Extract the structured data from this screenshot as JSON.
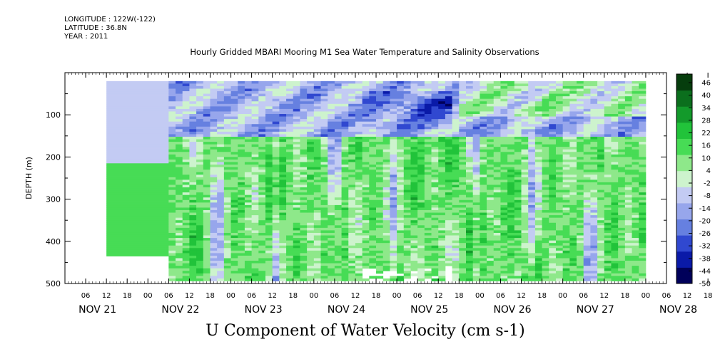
{
  "header": {
    "longitude": "LONGITUDE : 122W(-122)",
    "latitude": "LATITUDE : 36.8N",
    "year": "YEAR : 2011"
  },
  "chart_data": {
    "type": "heatmap",
    "title": "Hourly Gridded MBARI Mooring M1 Sea Water Temperature and Salinity Observations",
    "variable_label": "U Component of Water Velocity (cm s-1)",
    "ylabel": "DEPTH (m)",
    "ylim": [
      500,
      0
    ],
    "y_ticks": [
      100,
      200,
      300,
      400,
      500
    ],
    "y_tick_labels": [
      "100",
      "200",
      "300",
      "400",
      "500"
    ],
    "x_hour_tick_labels": [
      "06",
      "12",
      "18",
      "00",
      "06",
      "12",
      "18",
      "00",
      "06",
      "12",
      "18",
      "00",
      "06",
      "12",
      "18",
      "00",
      "06",
      "12",
      "18",
      "00",
      "06",
      "12",
      "18",
      "00",
      "06",
      "12",
      "18",
      "00",
      "06",
      "12",
      "18",
      "00"
    ],
    "x_date_labels": [
      "NOV 21",
      "NOV 22",
      "NOV 23",
      "NOV 24",
      "NOV 25",
      "NOV 26",
      "NOV 27",
      "NOV 28"
    ],
    "colorbar": {
      "levels": [
        "46",
        "40",
        "34",
        "28",
        "22",
        "16",
        "10",
        "4",
        "-2",
        "-8",
        "-14",
        "-20",
        "-26",
        "-32",
        "-38",
        "-44",
        "-50"
      ],
      "range": [
        -50,
        52
      ],
      "colors_low_to_high": [
        "#00005a",
        "#0a1aa8",
        "#3048d0",
        "#6680e0",
        "#97a6ec",
        "#c3cbf3",
        "#cdf3cd",
        "#8ee88a",
        "#47dc55",
        "#21c33a",
        "#139a2b",
        "#0b6f1d",
        "#063d0d"
      ]
    },
    "data_summary": [
      {
        "period": "NOV 21 12 - NOV 22 06",
        "depth_m": "20-215",
        "u_cm_s": -10
      },
      {
        "period": "NOV 21 12 - NOV 22 06",
        "depth_m": "215-435",
        "u_cm_s": 14
      },
      {
        "period": "NOV 22 06 - NOV 25 06",
        "depth_m": "20-150",
        "u_cm_s": -12
      },
      {
        "period": "NOV 24 12 - NOV 25 12",
        "depth_m": "60-80",
        "u_cm_s": -42
      },
      {
        "period": "NOV 22 06 - NOV 28 00",
        "depth_m": "150-490",
        "u_cm_s": 12
      }
    ]
  }
}
